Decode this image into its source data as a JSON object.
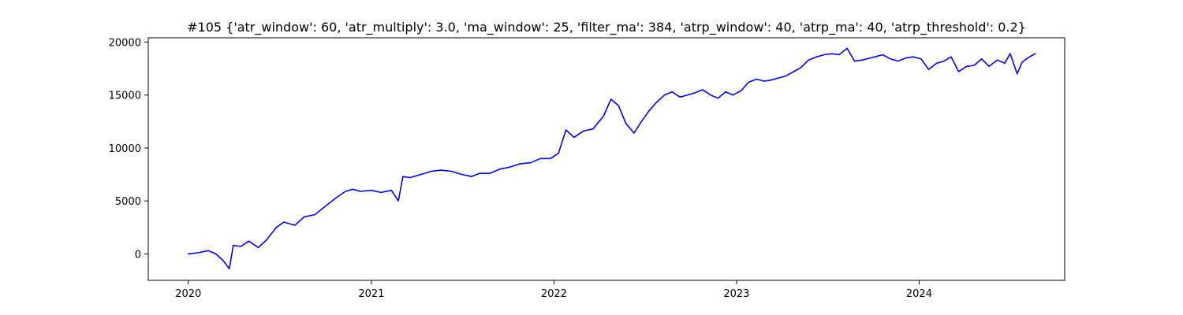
{
  "chart_data": {
    "type": "line",
    "title": "#105 {'atr_window': 60, 'atr_multiply': 3.0, 'ma_window': 25, 'filter_ma': 384, 'atrp_window': 40, 'atrp_ma': 40, 'atrp_threshold': 0.2}",
    "xlabel": "",
    "ylabel": "",
    "xlim": [
      "2019-10-13",
      "2024-10-18"
    ],
    "ylim": [
      -2500,
      20400
    ],
    "xticks": [
      {
        "value": "2020-01-01",
        "label": "2020"
      },
      {
        "value": "2021-01-01",
        "label": "2021"
      },
      {
        "value": "2022-01-01",
        "label": "2022"
      },
      {
        "value": "2023-01-01",
        "label": "2023"
      },
      {
        "value": "2024-01-01",
        "label": "2024"
      }
    ],
    "yticks": [
      {
        "value": 0,
        "label": "0"
      },
      {
        "value": 5000,
        "label": "5000"
      },
      {
        "value": 10000,
        "label": "10000"
      },
      {
        "value": 15000,
        "label": "15000"
      },
      {
        "value": 20000,
        "label": "20000"
      }
    ],
    "grid": false,
    "series": [
      {
        "color": "#0000ff",
        "x": [
          "2020-01-01",
          "2020-01-20",
          "2020-02-10",
          "2020-02-25",
          "2020-03-10",
          "2020-03-23",
          "2020-03-31",
          "2020-04-15",
          "2020-05-01",
          "2020-05-20",
          "2020-06-05",
          "2020-06-25",
          "2020-07-10",
          "2020-08-01",
          "2020-08-20",
          "2020-09-10",
          "2020-10-01",
          "2020-10-20",
          "2020-11-10",
          "2020-11-25",
          "2020-12-10",
          "2021-01-01",
          "2021-01-20",
          "2021-02-10",
          "2021-02-24",
          "2021-03-05",
          "2021-03-20",
          "2021-04-10",
          "2021-05-01",
          "2021-05-20",
          "2021-06-10",
          "2021-07-01",
          "2021-07-20",
          "2021-08-05",
          "2021-08-25",
          "2021-09-15",
          "2021-10-05",
          "2021-10-25",
          "2021-11-15",
          "2021-12-05",
          "2021-12-25",
          "2022-01-10",
          "2022-01-25",
          "2022-02-10",
          "2022-03-01",
          "2022-03-20",
          "2022-04-10",
          "2022-04-25",
          "2022-05-10",
          "2022-05-25",
          "2022-06-10",
          "2022-06-25",
          "2022-07-10",
          "2022-07-25",
          "2022-08-10",
          "2022-08-25",
          "2022-09-10",
          "2022-09-25",
          "2022-10-10",
          "2022-10-25",
          "2022-11-10",
          "2022-11-25",
          "2022-12-10",
          "2022-12-25",
          "2023-01-10",
          "2023-01-25",
          "2023-02-10",
          "2023-02-25",
          "2023-03-10",
          "2023-03-25",
          "2023-04-10",
          "2023-04-25",
          "2023-05-10",
          "2023-05-25",
          "2023-06-10",
          "2023-06-25",
          "2023-07-10",
          "2023-07-25",
          "2023-08-10",
          "2023-08-25",
          "2023-09-10",
          "2023-09-25",
          "2023-10-05",
          "2023-10-20",
          "2023-11-05",
          "2023-11-20",
          "2023-12-05",
          "2023-12-20",
          "2024-01-05",
          "2024-01-20",
          "2024-02-05",
          "2024-02-20",
          "2024-03-05",
          "2024-03-20",
          "2024-04-05",
          "2024-04-20",
          "2024-05-05",
          "2024-05-20",
          "2024-06-05",
          "2024-06-20",
          "2024-07-01",
          "2024-07-15",
          "2024-07-25",
          "2024-08-05",
          "2024-08-20"
        ],
        "values": [
          0,
          100,
          300,
          0,
          -600,
          -1400,
          800,
          700,
          1200,
          600,
          1300,
          2500,
          3000,
          2700,
          3500,
          3700,
          4500,
          5200,
          5900,
          6100,
          5900,
          6000,
          5800,
          6000,
          5000,
          7300,
          7200,
          7500,
          7800,
          7900,
          7800,
          7500,
          7300,
          7600,
          7600,
          8000,
          8200,
          8500,
          8600,
          9000,
          9000,
          9500,
          11700,
          11000,
          11600,
          11800,
          13000,
          14600,
          14000,
          12300,
          11400,
          12500,
          13500,
          14300,
          15000,
          15300,
          14800,
          15000,
          15200,
          15500,
          15000,
          14700,
          15300,
          15000,
          15400,
          16200,
          16500,
          16300,
          16400,
          16600,
          16800,
          17200,
          17600,
          18300,
          18600,
          18800,
          18900,
          18800,
          19400,
          18200,
          18300,
          18500,
          18600,
          18800,
          18400,
          18200,
          18500,
          18600,
          18400,
          17400,
          18000,
          18200,
          18600,
          17200,
          17700,
          17800,
          18400,
          17700,
          18300,
          18000,
          18900,
          17000,
          18100,
          18500,
          18900
        ]
      }
    ]
  }
}
